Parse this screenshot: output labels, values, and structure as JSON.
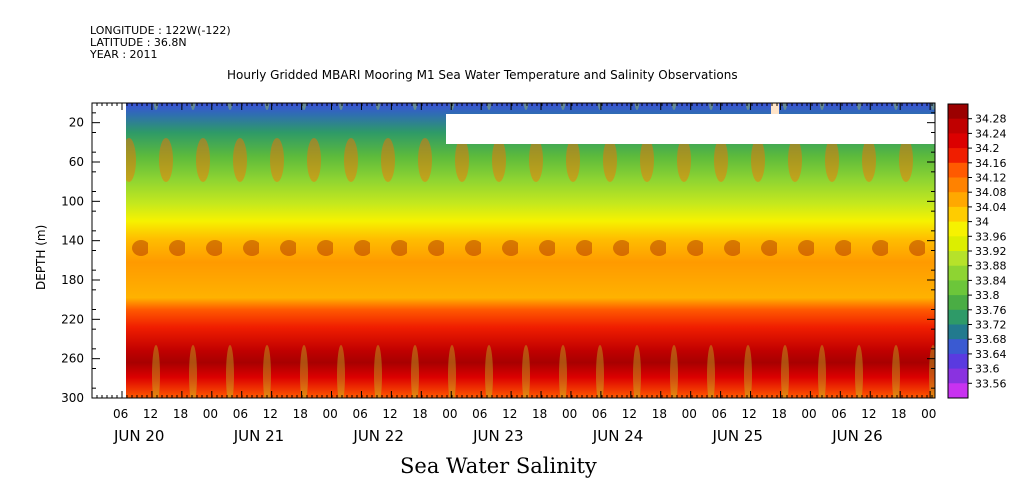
{
  "header": {
    "longitude": "LONGITUDE : 122W(-122)",
    "latitude": "LATITUDE : 36.8N",
    "year": "YEAR : 2011"
  },
  "chart_data": {
    "type": "heatmap",
    "title": "Hourly Gridded MBARI Mooring M1 Sea Water Temperature and Salinity Observations",
    "xlabel": "Sea Water Salinity",
    "ylabel": "DEPTH (m)",
    "x_hour_ticks": [
      "06",
      "12",
      "18",
      "00",
      "06",
      "12",
      "18",
      "00",
      "06",
      "12",
      "18",
      "00",
      "06",
      "12",
      "18",
      "00",
      "06",
      "12",
      "18",
      "00",
      "06",
      "12",
      "18",
      "00",
      "06",
      "12",
      "18",
      "00",
      "06",
      "12",
      "18",
      "00"
    ],
    "x_day_labels": [
      "JUN 20",
      "JUN 21",
      "JUN 22",
      "JUN 23",
      "JUN 24",
      "JUN 25",
      "JUN 26"
    ],
    "y_ticks": [
      20,
      60,
      100,
      140,
      180,
      220,
      260,
      300
    ],
    "ylim": [
      300,
      0
    ],
    "colorbar": {
      "levels": [
        "34.28",
        "34.24",
        "34.2",
        "34.16",
        "34.12",
        "34.08",
        "34.04",
        "34",
        "33.96",
        "33.92",
        "33.88",
        "33.84",
        "33.8",
        "33.76",
        "33.72",
        "33.68",
        "33.64",
        "33.6",
        "33.56"
      ],
      "colors": [
        "#9b0000",
        "#c00000",
        "#dc0000",
        "#f01e00",
        "#ff5a00",
        "#ff8200",
        "#ffa800",
        "#ffcc00",
        "#f6f200",
        "#dcee00",
        "#b6e22a",
        "#8ed432",
        "#6cc63a",
        "#4aad44",
        "#2e9a68",
        "#227a8e",
        "#3a5ad2",
        "#5a3ae0",
        "#8a32e0",
        "#c832f0"
      ]
    },
    "depth_profile": [
      {
        "depth": 10,
        "salinity": 33.64
      },
      {
        "depth": 30,
        "salinity": 33.76
      },
      {
        "depth": 50,
        "salinity": 33.82
      },
      {
        "depth": 70,
        "salinity": 33.86
      },
      {
        "depth": 90,
        "salinity": 33.9
      },
      {
        "depth": 110,
        "salinity": 33.94
      },
      {
        "depth": 125,
        "salinity": 34.0
      },
      {
        "depth": 150,
        "salinity": 34.12
      },
      {
        "depth": 180,
        "salinity": 34.08
      },
      {
        "depth": 210,
        "salinity": 34.16
      },
      {
        "depth": 240,
        "salinity": 34.22
      },
      {
        "depth": 255,
        "salinity": 34.26
      },
      {
        "depth": 280,
        "salinity": 34.2
      },
      {
        "depth": 300,
        "salinity": 34.16
      }
    ],
    "grid": false,
    "legend": "right colorbar"
  }
}
